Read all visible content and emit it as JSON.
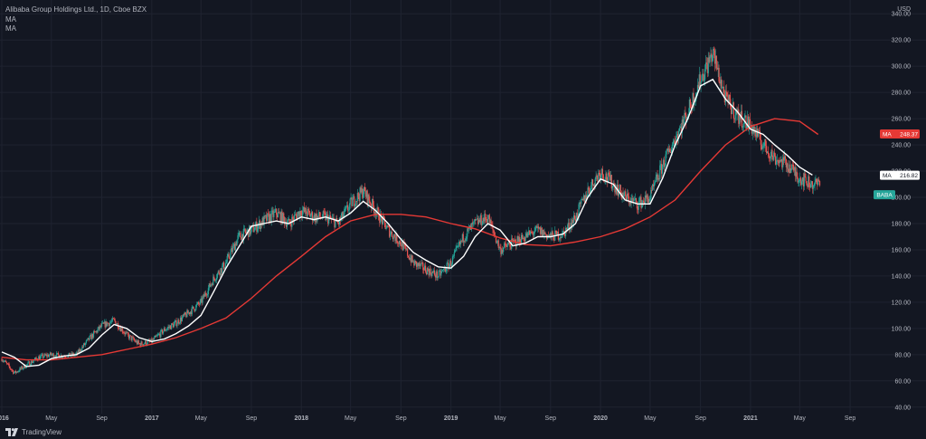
{
  "legend": {
    "title": "Alibaba Group Holdings Ltd., 1D, Cboe BZX",
    "ma1": "MA",
    "ma2": "MA"
  },
  "footer": {
    "brand": "TradingView"
  },
  "colors": {
    "background": "#131722",
    "grid": "#1f2330",
    "up_candle": "#26a69a",
    "down_candle": "#ef5350",
    "ma_fast": "#ffffff",
    "ma_slow": "#e53935",
    "ma_fast_badge_bg": "#ffffff",
    "ma_slow_badge_bg": "#e53935",
    "price_badge_bg": "#26a69a"
  },
  "chart_data": {
    "type": "line",
    "title": "Alibaba Group Holdings Ltd., 1D, Cboe BZX",
    "currency_label": "USD",
    "ylim": [
      35,
      345
    ],
    "y_ticks": [
      40,
      60,
      80,
      100,
      120,
      140,
      160,
      180,
      200,
      220,
      240,
      260,
      280,
      300,
      320,
      340
    ],
    "y_tick_labels": [
      "40.00",
      "60.00",
      "80.00",
      "100.00",
      "120.00",
      "140.00",
      "160.00",
      "180.00",
      "200.00",
      "220.00",
      "240.00",
      "260.00",
      "280.00",
      "300.00",
      "320.00",
      "340.00"
    ],
    "x_range": [
      "2016-01-01",
      "2021-10-15"
    ],
    "x_ticks": [
      {
        "date": "2016-01-01",
        "label": "2016"
      },
      {
        "date": "2016-05-01",
        "label": "May"
      },
      {
        "date": "2016-09-01",
        "label": "Sep"
      },
      {
        "date": "2017-01-01",
        "label": "2017"
      },
      {
        "date": "2017-05-01",
        "label": "May"
      },
      {
        "date": "2017-09-01",
        "label": "Sep"
      },
      {
        "date": "2018-01-01",
        "label": "2018"
      },
      {
        "date": "2018-05-01",
        "label": "May"
      },
      {
        "date": "2018-09-01",
        "label": "Sep"
      },
      {
        "date": "2019-01-01",
        "label": "2019"
      },
      {
        "date": "2019-05-01",
        "label": "May"
      },
      {
        "date": "2019-09-01",
        "label": "Sep"
      },
      {
        "date": "2020-01-01",
        "label": "2020"
      },
      {
        "date": "2020-05-01",
        "label": "May"
      },
      {
        "date": "2020-09-01",
        "label": "Sep"
      },
      {
        "date": "2021-01-01",
        "label": "2021"
      },
      {
        "date": "2021-05-01",
        "label": "May"
      },
      {
        "date": "2021-09-01",
        "label": "Sep"
      }
    ],
    "price_series": {
      "name": "BABA",
      "x": [
        "2016-01-01",
        "2016-02-01",
        "2016-03-01",
        "2016-04-01",
        "2016-05-01",
        "2016-06-01",
        "2016-07-01",
        "2016-08-01",
        "2016-09-01",
        "2016-10-01",
        "2016-11-01",
        "2016-12-01",
        "2017-01-01",
        "2017-02-01",
        "2017-03-01",
        "2017-04-01",
        "2017-05-01",
        "2017-06-01",
        "2017-07-01",
        "2017-08-01",
        "2017-09-01",
        "2017-10-01",
        "2017-11-01",
        "2017-12-01",
        "2018-01-01",
        "2018-02-01",
        "2018-03-01",
        "2018-04-01",
        "2018-05-01",
        "2018-06-01",
        "2018-07-01",
        "2018-08-01",
        "2018-09-01",
        "2018-10-01",
        "2018-11-01",
        "2018-12-01",
        "2019-01-01",
        "2019-02-01",
        "2019-03-01",
        "2019-04-01",
        "2019-05-01",
        "2019-06-01",
        "2019-07-01",
        "2019-08-01",
        "2019-09-01",
        "2019-10-01",
        "2019-11-01",
        "2019-12-01",
        "2020-01-01",
        "2020-02-01",
        "2020-03-01",
        "2020-04-01",
        "2020-05-01",
        "2020-06-01",
        "2020-07-01",
        "2020-08-01",
        "2020-09-01",
        "2020-10-01",
        "2020-11-01",
        "2020-12-01",
        "2021-01-01",
        "2021-02-01",
        "2021-03-01",
        "2021-04-01",
        "2021-05-01",
        "2021-06-01"
      ],
      "values": [
        77,
        66,
        72,
        78,
        80,
        79,
        80,
        92,
        102,
        106,
        95,
        88,
        90,
        99,
        104,
        112,
        120,
        138,
        150,
        170,
        175,
        182,
        188,
        180,
        190,
        185,
        185,
        180,
        195,
        205,
        190,
        175,
        165,
        150,
        145,
        140,
        150,
        170,
        180,
        185,
        160,
        165,
        170,
        175,
        170,
        172,
        185,
        205,
        220,
        210,
        200,
        195,
        200,
        225,
        245,
        265,
        290,
        310,
        275,
        262,
        255,
        240,
        230,
        225,
        215,
        210
      ]
    },
    "series": [
      {
        "name": "MA",
        "color": "#ffffff",
        "last_value": "216.82",
        "x": [
          "2016-01-01",
          "2016-02-01",
          "2016-03-01",
          "2016-04-01",
          "2016-05-01",
          "2016-06-01",
          "2016-07-01",
          "2016-08-01",
          "2016-09-01",
          "2016-10-01",
          "2016-11-01",
          "2016-12-01",
          "2017-01-01",
          "2017-02-01",
          "2017-03-01",
          "2017-04-01",
          "2017-05-01",
          "2017-06-01",
          "2017-07-01",
          "2017-08-01",
          "2017-09-01",
          "2017-10-01",
          "2017-11-01",
          "2017-12-01",
          "2018-01-01",
          "2018-02-01",
          "2018-03-01",
          "2018-04-01",
          "2018-05-01",
          "2018-06-01",
          "2018-07-01",
          "2018-08-01",
          "2018-09-01",
          "2018-10-01",
          "2018-11-01",
          "2018-12-01",
          "2019-01-01",
          "2019-02-01",
          "2019-03-01",
          "2019-04-01",
          "2019-05-01",
          "2019-06-01",
          "2019-07-01",
          "2019-08-01",
          "2019-09-01",
          "2019-10-01",
          "2019-11-01",
          "2019-12-01",
          "2020-01-01",
          "2020-02-01",
          "2020-03-01",
          "2020-04-01",
          "2020-05-01",
          "2020-06-01",
          "2020-07-01",
          "2020-08-01",
          "2020-09-01",
          "2020-10-01",
          "2020-11-01",
          "2020-12-01",
          "2021-01-01",
          "2021-02-01",
          "2021-03-01",
          "2021-04-01",
          "2021-05-01",
          "2021-06-01"
        ],
        "values": [
          82,
          78,
          71,
          72,
          77,
          79,
          80,
          85,
          95,
          103,
          100,
          93,
          90,
          92,
          96,
          102,
          110,
          128,
          146,
          162,
          178,
          180,
          182,
          180,
          185,
          183,
          185,
          182,
          188,
          197,
          190,
          180,
          168,
          158,
          152,
          147,
          146,
          155,
          170,
          180,
          175,
          163,
          165,
          170,
          170,
          172,
          180,
          200,
          214,
          210,
          198,
          195,
          195,
          215,
          240,
          260,
          285,
          290,
          275,
          265,
          252,
          248,
          240,
          232,
          223,
          217
        ]
      },
      {
        "name": "MA",
        "color": "#e53935",
        "last_value": "248.37",
        "x": [
          "2016-01-01",
          "2016-03-01",
          "2016-05-01",
          "2016-07-01",
          "2016-09-01",
          "2016-11-01",
          "2017-01-01",
          "2017-03-01",
          "2017-05-01",
          "2017-07-01",
          "2017-09-01",
          "2017-11-01",
          "2018-01-01",
          "2018-03-01",
          "2018-05-01",
          "2018-07-01",
          "2018-09-01",
          "2018-11-01",
          "2019-01-01",
          "2019-03-01",
          "2019-05-01",
          "2019-07-01",
          "2019-09-01",
          "2019-11-01",
          "2020-01-01",
          "2020-03-01",
          "2020-05-01",
          "2020-07-01",
          "2020-09-01",
          "2020-11-01",
          "2021-01-01",
          "2021-03-01",
          "2021-05-01",
          "2021-06-15"
        ],
        "values": [
          78,
          76,
          76,
          78,
          80,
          84,
          88,
          93,
          100,
          108,
          123,
          140,
          155,
          170,
          182,
          187,
          187,
          185,
          180,
          176,
          169,
          164,
          163,
          166,
          170,
          176,
          185,
          198,
          220,
          240,
          254,
          260,
          258,
          248
        ]
      }
    ],
    "last_price_label": "BABA",
    "grid": true
  }
}
